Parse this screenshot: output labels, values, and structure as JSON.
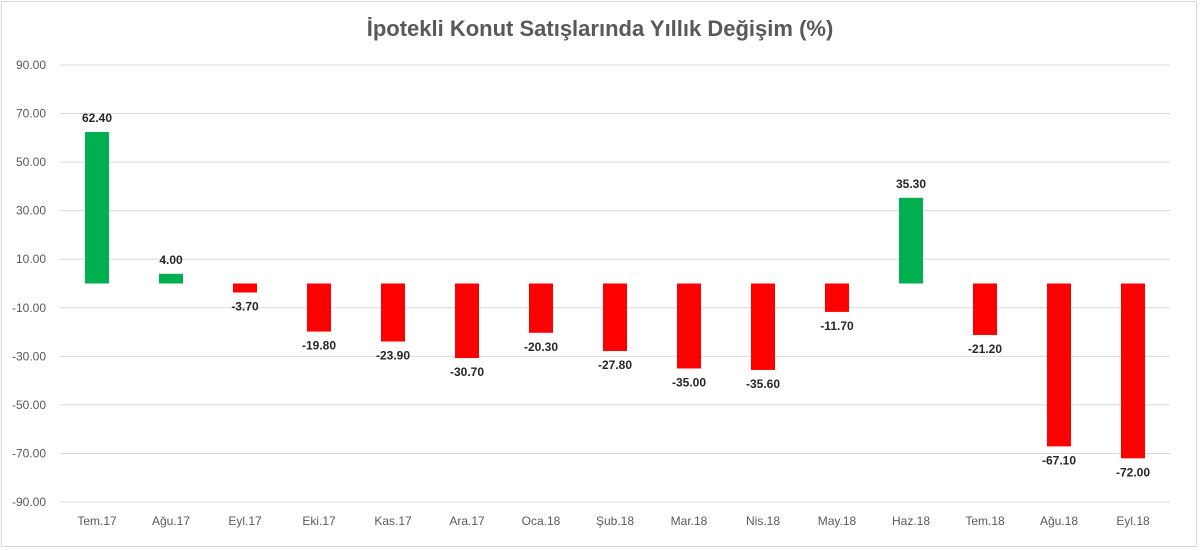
{
  "chart_data": {
    "type": "bar",
    "title": "İpotekli Konut Satışlarında Yıllık Değişim (%)",
    "xlabel": "",
    "ylabel": "",
    "ylim": [
      -90,
      90
    ],
    "yticks": [
      "90.00",
      "70.00",
      "50.00",
      "30.00",
      "10.00",
      "-10.00",
      "-30.00",
      "-50.00",
      "-70.00",
      "-90.00"
    ],
    "ytick_values": [
      90,
      70,
      50,
      30,
      10,
      -10,
      -30,
      -50,
      -70,
      -90
    ],
    "grid": true,
    "legend": "none",
    "categories": [
      "Tem.17",
      "Ağu.17",
      "Eyl.17",
      "Eki.17",
      "Kas.17",
      "Ara.17",
      "Oca.18",
      "Şub.18",
      "Mar.18",
      "Nis.18",
      "May.18",
      "Haz.18",
      "Tem.18",
      "Ağu.18",
      "Eyl.18"
    ],
    "values": [
      62.4,
      4.0,
      -3.7,
      -19.8,
      -23.9,
      -30.7,
      -20.3,
      -27.8,
      -35.0,
      -35.6,
      -11.7,
      35.3,
      -21.2,
      -67.1,
      -72.0
    ],
    "data_labels": [
      "62.40",
      "4.00",
      "-3.70",
      "-19.80",
      "-23.90",
      "-30.70",
      "-20.30",
      "-27.80",
      "-35.00",
      "-35.60",
      "-11.70",
      "35.30",
      "-21.20",
      "-67.10",
      "-72.00"
    ],
    "colors": {
      "positive": "#00b050",
      "negative": "#ff0000",
      "grid": "#d9d9d9",
      "text": "#595959"
    }
  }
}
